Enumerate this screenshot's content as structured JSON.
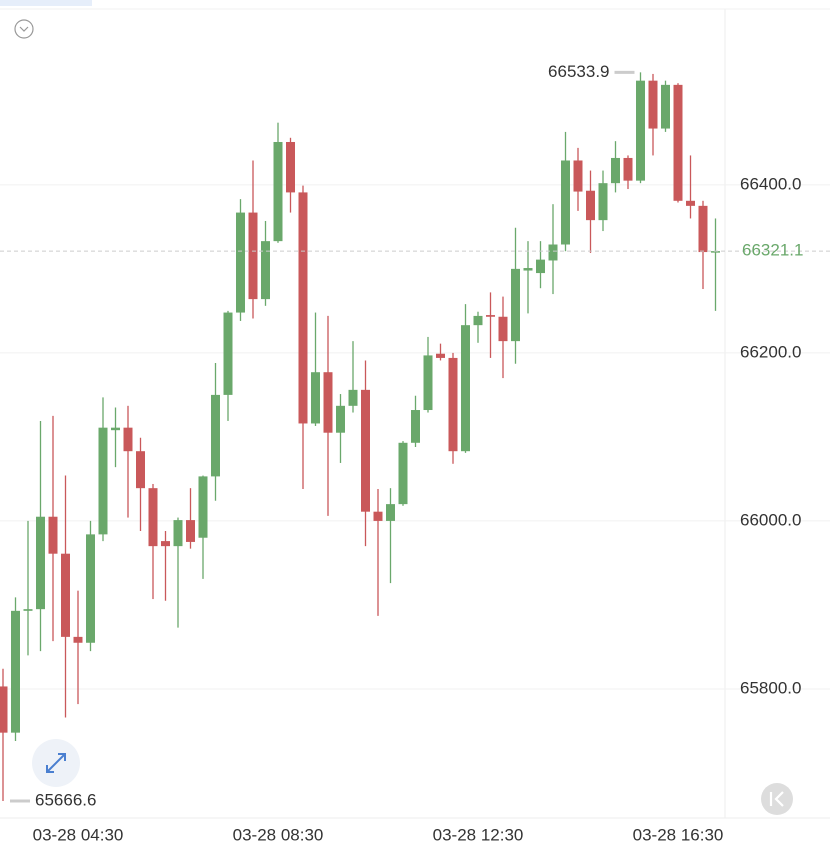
{
  "chart_data": {
    "type": "candlestick",
    "categories": [
      null,
      null,
      null,
      null,
      null,
      null,
      "03-28 04:30",
      null,
      null,
      null,
      null,
      null,
      null,
      null,
      null,
      null,
      null,
      null,
      null,
      null,
      null,
      null,
      "03-28 08:30",
      null,
      null,
      null,
      null,
      null,
      null,
      null,
      null,
      null,
      null,
      null,
      null,
      null,
      null,
      null,
      "03-28 12:30",
      null,
      null,
      null,
      null,
      null,
      null,
      null,
      null,
      null,
      null,
      null,
      null,
      null,
      null,
      null,
      "03-28 16:30",
      null,
      null,
      null
    ],
    "open": [
      65803,
      65748,
      65893,
      65895,
      66005,
      65961,
      65862,
      65855,
      65984,
      66108,
      66111,
      66083,
      66039,
      65976,
      65970,
      66001,
      65980,
      66053,
      66150,
      66248,
      66367,
      66264,
      66333,
      66451,
      66391,
      66116,
      66177,
      66105,
      66137,
      66156,
      66011,
      66000,
      66020,
      66093,
      66132,
      66199,
      66194,
      66083,
      66233,
      66245,
      66243,
      66214,
      66298,
      66295,
      66310,
      66329,
      66429,
      66393,
      66358,
      66402,
      66432,
      66405,
      66524,
      66467,
      66519,
      66381,
      66375,
      66320
    ],
    "high": [
      65824,
      65909,
      66000,
      66119,
      66125,
      66054,
      65917,
      66000,
      66147,
      66135,
      66137,
      66099,
      66044,
      65988,
      66004,
      66039,
      66054,
      66188,
      66250,
      66383,
      66429,
      66357,
      66474,
      66456,
      66399,
      66248,
      66244,
      66151,
      66214,
      66191,
      66038,
      66039,
      66095,
      66149,
      66219,
      66211,
      66200,
      66258,
      66249,
      66272,
      66267,
      66349,
      66333,
      66333,
      66377,
      66463,
      66444,
      66417,
      66417,
      66452,
      66435,
      66533.9,
      66532,
      66524,
      66521,
      66435,
      66381,
      66360
    ],
    "low": [
      65666.6,
      65738,
      65840,
      65845,
      65857,
      65766,
      65782,
      65845,
      65976,
      66064,
      66004,
      65988,
      65907,
      65905,
      65873,
      65967,
      65931,
      66024,
      66119,
      66238,
      66241,
      66256,
      66331,
      66367,
      66038,
      66113,
      66006,
      66069,
      66129,
      65970,
      65887,
      65926,
      66018,
      66088,
      66129,
      66191,
      66068,
      66081,
      66212,
      66194,
      66170,
      66187,
      66247,
      66277,
      66270,
      66321,
      66369,
      66319,
      66345,
      66391,
      66395,
      66402,
      66435,
      66463,
      66379,
      66360,
      66276,
      66250
    ],
    "close": [
      65748,
      65893,
      65895,
      66005,
      65961,
      65862,
      65855,
      65984,
      66111,
      66111,
      66083,
      66039,
      65970,
      65970,
      66001,
      65975,
      66053,
      66150,
      66248,
      66367,
      66264,
      66333,
      66451,
      66391,
      66116,
      66177,
      66105,
      66137,
      66156,
      66011,
      66000,
      66020,
      66093,
      66132,
      66197,
      66194,
      66083,
      66233,
      66244,
      66243,
      66214,
      66300,
      66301,
      66311,
      66329,
      66429,
      66392,
      66358,
      66402,
      66432,
      66405,
      66524,
      66467,
      66519,
      66381,
      66375,
      66320,
      66321.1
    ],
    "up_color": "#6aa86b",
    "down_color": "#c9585a",
    "ylim": [
      65650,
      66620
    ],
    "yticks": [
      {
        "value": 66400,
        "label": "66400.0"
      },
      {
        "value": 66200,
        "label": "66200.0"
      },
      {
        "value": 66000,
        "label": "66000.0"
      },
      {
        "value": 65800,
        "label": "65800.0"
      }
    ],
    "grid": true
  }
}
